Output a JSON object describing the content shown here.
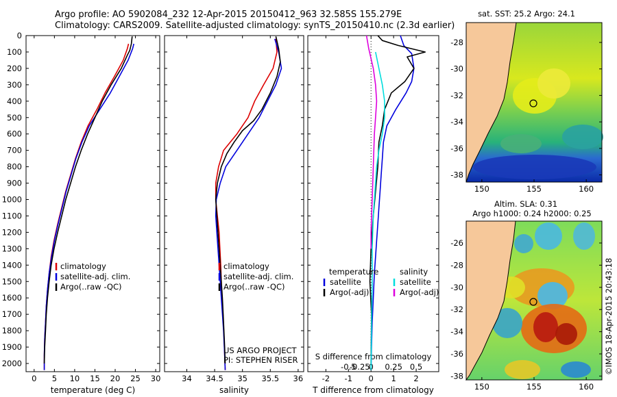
{
  "header": {
    "line1": "Argo profile: AO 5902084_232 12-Apr-2015 20150412_963 32.585S 155.279E",
    "line2": "Climatology: CARS2009. Satellite-adjusted climatology: synTS_20150410.nc (2.3d earlier)"
  },
  "depth_ticks": [
    "0",
    "100",
    "200",
    "300",
    "400",
    "500",
    "600",
    "700",
    "800",
    "900",
    "1000",
    "1100",
    "1200",
    "1300",
    "1400",
    "1500",
    "1600",
    "1700",
    "1800",
    "1900",
    "2000"
  ],
  "chart_data": [
    {
      "type": "line",
      "xlabel": "temperature (deg C)",
      "xlim": [
        -2,
        31
      ],
      "xticks": [
        0,
        5,
        10,
        15,
        20,
        25,
        30
      ],
      "ylim": [
        0,
        2050
      ],
      "y_reversed": true,
      "legend_position": "lower-center",
      "series": [
        {
          "name": "climatology",
          "color": "#dd0000",
          "x": [
            23.3,
            23.0,
            22.0,
            19.8,
            17.5,
            15.5,
            13.3,
            11.6,
            10.2,
            9.0,
            7.8,
            6.8,
            5.8,
            4.9,
            4.2,
            3.7,
            3.3,
            3.0,
            2.8,
            2.6,
            2.5,
            2.5
          ],
          "y": [
            50,
            80,
            150,
            250,
            350,
            450,
            550,
            650,
            750,
            850,
            950,
            1050,
            1150,
            1250,
            1350,
            1450,
            1550,
            1650,
            1750,
            1850,
            1950,
            2040
          ]
        },
        {
          "name": "satellite-adj. clim.",
          "color": "#0000dd",
          "x": [
            24.6,
            24.3,
            23.2,
            21.0,
            18.8,
            16.2,
            13.6,
            11.8,
            10.3,
            9.1,
            7.9,
            6.9,
            5.9,
            5.0,
            4.3,
            3.7,
            3.3,
            3.0,
            2.8,
            2.6,
            2.5,
            2.5
          ],
          "y": [
            50,
            80,
            150,
            250,
            350,
            450,
            550,
            650,
            750,
            850,
            950,
            1050,
            1150,
            1250,
            1350,
            1450,
            1550,
            1650,
            1750,
            1850,
            1950,
            2040
          ]
        },
        {
          "name": "Argo(..raw -QC)",
          "color": "#000000",
          "x": [
            24.2,
            24.0,
            23.6,
            23.0,
            21.5,
            19.0,
            16.8,
            15.0,
            13.2,
            11.6,
            10.2,
            9.0,
            7.8,
            6.8,
            5.8,
            4.9,
            4.2,
            3.7,
            3.3,
            3.0,
            2.8,
            2.6,
            2.5
          ],
          "y": [
            5,
            50,
            90,
            120,
            200,
            300,
            400,
            500,
            600,
            700,
            800,
            900,
            1000,
            1100,
            1200,
            1300,
            1400,
            1500,
            1600,
            1700,
            1800,
            1900,
            2000
          ]
        }
      ]
    },
    {
      "type": "line",
      "xlabel": "salinity",
      "xlim": [
        33.6,
        36.1
      ],
      "xticks": [
        34,
        34.5,
        35,
        35.5,
        36
      ],
      "ylim": [
        0,
        2050
      ],
      "y_reversed": true,
      "legend_position": "lower-center",
      "annotation": [
        "US ARGO PROJECT",
        "PI: STEPHEN RISER"
      ],
      "series": [
        {
          "name": "climatology",
          "color": "#dd0000",
          "x": [
            35.6,
            35.62,
            35.55,
            35.38,
            35.22,
            35.1,
            35.0,
            34.9,
            34.78,
            34.66,
            34.57,
            34.52,
            34.52,
            34.55,
            34.58,
            34.61,
            34.63,
            34.65,
            34.67,
            34.68,
            34.69
          ],
          "y": [
            20,
            100,
            200,
            300,
            400,
            500,
            550,
            600,
            650,
            700,
            800,
            900,
            1000,
            1100,
            1200,
            1400,
            1600,
            1700,
            1850,
            1950,
            2040
          ]
        },
        {
          "name": "satellite-adj. clim.",
          "color": "#0000dd",
          "x": [
            35.58,
            35.65,
            35.7,
            35.6,
            35.45,
            35.3,
            35.1,
            34.9,
            34.7,
            34.6,
            34.53,
            34.52,
            34.54,
            34.58,
            34.62,
            34.66,
            34.68,
            34.69
          ],
          "y": [
            20,
            100,
            200,
            300,
            400,
            500,
            600,
            700,
            800,
            900,
            1000,
            1100,
            1200,
            1400,
            1600,
            1800,
            1950,
            2040
          ]
        },
        {
          "name": "Argo(..raw -QC)",
          "color": "#000000",
          "x": [
            35.6,
            35.65,
            35.68,
            35.62,
            35.5,
            35.35,
            35.2,
            35.0,
            34.85,
            34.72,
            34.62,
            34.55,
            34.52,
            34.55,
            34.58,
            34.61,
            34.64,
            34.66,
            34.68,
            34.69
          ],
          "y": [
            5,
            80,
            160,
            250,
            350,
            450,
            520,
            580,
            650,
            720,
            800,
            900,
            1000,
            1150,
            1300,
            1450,
            1600,
            1750,
            1900,
            2000
          ]
        }
      ]
    },
    {
      "type": "line",
      "xlabel": "T difference from climatology",
      "xlabel_top": "S difference from climatology",
      "xlim": [
        -2.8,
        3.0
      ],
      "xticks": [
        -2,
        -1,
        0,
        1,
        2
      ],
      "top_ticks": [
        {
          "v": -1.0,
          "label": "-0.5"
        },
        {
          "v": -0.5,
          "label": "-0.25"
        },
        {
          "v": 0,
          "label": "0"
        },
        {
          "v": 1.0,
          "label": "0.25"
        },
        {
          "v": 2.0,
          "label": "0.5"
        }
      ],
      "ylim": [
        0,
        2050
      ],
      "y_reversed": true,
      "legend_titles": [
        "temperature",
        "salinity"
      ],
      "series": [
        {
          "name": "satellite",
          "group": "temperature",
          "color": "#0000dd",
          "x": [
            1.3,
            1.45,
            1.8,
            1.9,
            1.8,
            1.55,
            1.1,
            0.7,
            0.55,
            0.5,
            0.45,
            0.4,
            0.35,
            0.3,
            0.25,
            0.2,
            0.15,
            0.1,
            0.05,
            0.02,
            0.0
          ],
          "y": [
            0,
            60,
            110,
            200,
            280,
            350,
            450,
            550,
            650,
            750,
            850,
            950,
            1050,
            1150,
            1250,
            1350,
            1450,
            1600,
            1750,
            1900,
            2040
          ]
        },
        {
          "name": "Argo(-adj)",
          "group": "temperature",
          "color": "#000000",
          "x": [
            0.3,
            0.5,
            1.2,
            2.4,
            1.6,
            1.9,
            1.5,
            0.9,
            0.6,
            0.5,
            0.35,
            0.3,
            0.2,
            0.1,
            0.0,
            -0.05,
            0.02,
            0.0
          ],
          "y": [
            0,
            30,
            60,
            100,
            130,
            200,
            280,
            350,
            450,
            550,
            650,
            800,
            950,
            1100,
            1300,
            1500,
            1700,
            2000
          ]
        },
        {
          "name": "satellite",
          "group": "salinity",
          "color": "#00dddd",
          "x": [
            0.2,
            0.35,
            0.5,
            0.6,
            0.6,
            0.5,
            0.35,
            0.25,
            0.2,
            0.15,
            0.1,
            0.05,
            0.05,
            0.02,
            0.0
          ],
          "y": [
            100,
            200,
            300,
            400,
            500,
            600,
            700,
            800,
            900,
            1000,
            1100,
            1300,
            1500,
            1800,
            2040
          ]
        },
        {
          "name": "Argo(-adj)",
          "group": "salinity",
          "color": "#dd00dd",
          "x": [
            -0.2,
            -0.1,
            0.1,
            0.2,
            0.25,
            0.2,
            0.15,
            0.1,
            0.05,
            0.0,
            0.0
          ],
          "y": [
            0,
            80,
            200,
            300,
            400,
            500,
            600,
            800,
            1000,
            1200,
            1300
          ]
        }
      ]
    }
  ],
  "maps": {
    "sst": {
      "title": "sat. SST: 25.2  Argo: 24.1",
      "xticks": [
        "150",
        "155",
        "160"
      ],
      "yticks": [
        "-28",
        "-30",
        "-32",
        "-34",
        "-36",
        "-38"
      ]
    },
    "sla": {
      "title_line1": "Altim. SLA: 0.31",
      "title_line2": "Argo h1000: 0.24 h2000: 0.25",
      "xticks": [
        "150",
        "155",
        "160"
      ],
      "yticks": [
        "-26",
        "-28",
        "-30",
        "-32",
        "-34",
        "-36",
        "-38"
      ]
    }
  },
  "credit": "©IMOS 18-Apr-2015 20:43:18"
}
